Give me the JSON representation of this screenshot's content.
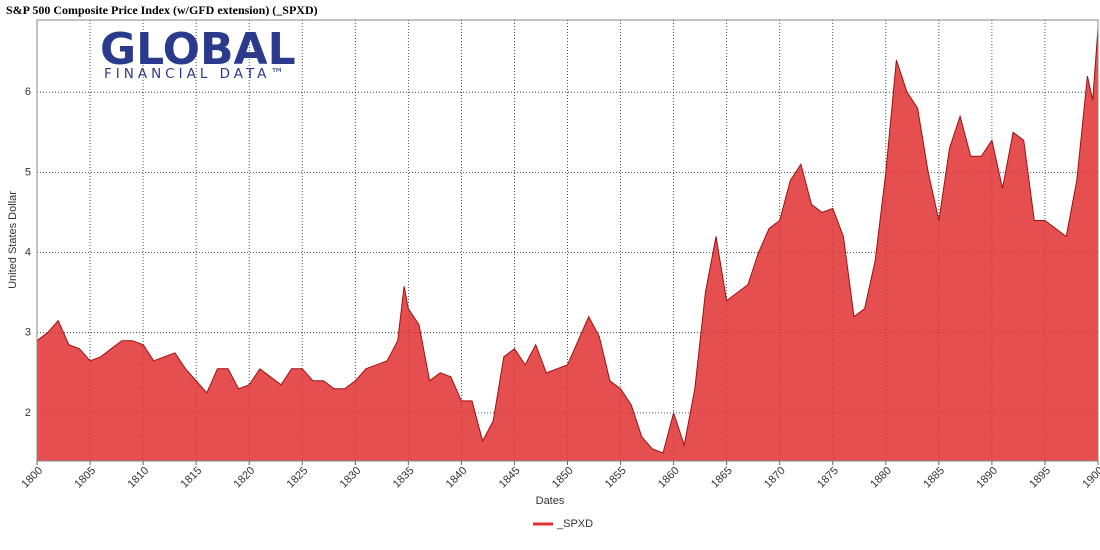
{
  "chart_data": {
    "type": "area",
    "title": "S&P 500 Composite Price Index (w/GFD extension) (_SPXD)",
    "logo": {
      "name": "GLOBAL",
      "tagline": "FINANCIAL DATA™"
    },
    "x_label": "Dates",
    "y_label": "United States Dollar",
    "xlim": [
      1800,
      1900
    ],
    "xticks": [
      1800,
      1805,
      1810,
      1815,
      1820,
      1825,
      1830,
      1835,
      1840,
      1845,
      1850,
      1855,
      1860,
      1865,
      1870,
      1875,
      1880,
      1885,
      1890,
      1895,
      1900
    ],
    "ylim": [
      1.4,
      6.9
    ],
    "yticks": [
      2,
      3,
      4,
      5,
      6
    ],
    "grid": true,
    "legend": "bottom",
    "series": [
      {
        "name": "_SPXD",
        "color": "#e03030",
        "x": [
          1800,
          1801,
          1802,
          1803,
          1804,
          1805,
          1806,
          1807,
          1808,
          1809,
          1810,
          1811,
          1812,
          1813,
          1814,
          1815,
          1816,
          1817,
          1818,
          1819,
          1820,
          1821,
          1822,
          1823,
          1824,
          1825,
          1826,
          1827,
          1828,
          1829,
          1830,
          1831,
          1832,
          1833,
          1834,
          1834.6,
          1835,
          1836,
          1837,
          1838,
          1839,
          1840,
          1841,
          1842,
          1843,
          1844,
          1845,
          1846,
          1847,
          1848,
          1849,
          1850,
          1851,
          1852,
          1853,
          1854,
          1855,
          1856,
          1857,
          1858,
          1859,
          1860,
          1861,
          1862,
          1863,
          1864,
          1865,
          1866,
          1867,
          1868,
          1869,
          1870,
          1871,
          1872,
          1873,
          1874,
          1875,
          1876,
          1877,
          1878,
          1879,
          1880,
          1881,
          1882,
          1883,
          1884,
          1885,
          1886,
          1887,
          1888,
          1889,
          1890,
          1891,
          1892,
          1893,
          1894,
          1895,
          1896,
          1897,
          1898,
          1899,
          1899.5,
          1900
        ],
        "values": [
          2.9,
          3.0,
          3.15,
          2.85,
          2.8,
          2.65,
          2.7,
          2.8,
          2.9,
          2.9,
          2.85,
          2.65,
          2.7,
          2.75,
          2.55,
          2.4,
          2.25,
          2.55,
          2.55,
          2.3,
          2.35,
          2.55,
          2.45,
          2.35,
          2.55,
          2.55,
          2.4,
          2.4,
          2.3,
          2.3,
          2.4,
          2.55,
          2.6,
          2.65,
          2.9,
          3.58,
          3.3,
          3.1,
          2.4,
          2.5,
          2.45,
          2.15,
          2.15,
          1.65,
          1.9,
          2.7,
          2.8,
          2.6,
          2.85,
          2.5,
          2.55,
          2.6,
          2.9,
          3.2,
          2.95,
          2.4,
          2.3,
          2.1,
          1.7,
          1.55,
          1.5,
          2.0,
          1.6,
          2.3,
          3.5,
          4.2,
          3.4,
          3.5,
          3.6,
          4.0,
          4.3,
          4.4,
          4.9,
          5.1,
          4.6,
          4.5,
          4.55,
          4.2,
          3.2,
          3.3,
          3.9,
          5.0,
          6.4,
          6.0,
          5.8,
          5.0,
          4.4,
          5.3,
          5.7,
          5.2,
          5.2,
          5.4,
          4.8,
          5.5,
          5.4,
          4.4,
          4.4,
          4.3,
          4.2,
          4.9,
          6.2,
          5.9,
          6.8
        ]
      }
    ]
  }
}
